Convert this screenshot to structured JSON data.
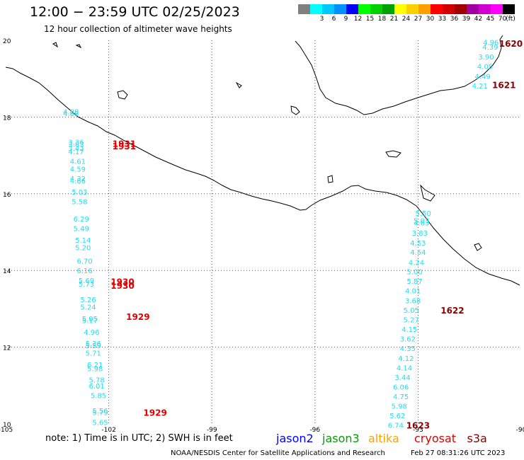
{
  "header": {
    "title": "12:00 − 23:59 UTC 02/25/2023",
    "subtitle": "12 hour collection of altimeter wave heights"
  },
  "legend": {
    "unit": "(ft)",
    "bins": [
      {
        "color": "#808080",
        "label": ""
      },
      {
        "color": "#00ffff",
        "label": "3"
      },
      {
        "color": "#00c8ff",
        "label": "6"
      },
      {
        "color": "#0090ff",
        "label": "9"
      },
      {
        "color": "#0000ff",
        "label": "12"
      },
      {
        "color": "#00ff00",
        "label": "15"
      },
      {
        "color": "#00d000",
        "label": "18"
      },
      {
        "color": "#00a000",
        "label": "21"
      },
      {
        "color": "#ffff00",
        "label": "24"
      },
      {
        "color": "#ffd000",
        "label": "27"
      },
      {
        "color": "#ffa000",
        "label": "30"
      },
      {
        "color": "#ff0000",
        "label": "33"
      },
      {
        "color": "#d00000",
        "label": "36"
      },
      {
        "color": "#a00000",
        "label": "39"
      },
      {
        "color": "#a000a0",
        "label": "42"
      },
      {
        "color": "#d000d0",
        "label": "45"
      },
      {
        "color": "#ff00ff",
        "label": "70"
      },
      {
        "color": "#000000",
        "label": ""
      }
    ]
  },
  "axes": {
    "lon_labels": [
      "-105",
      "-102",
      "-99",
      "-96",
      "-93",
      "-90"
    ],
    "lat_labels": [
      "20",
      "18",
      "16",
      "14",
      "12",
      "10"
    ],
    "lon_range": [
      -105,
      -90
    ],
    "lat_range": [
      10,
      20
    ]
  },
  "tracks": [
    {
      "satellite": "cryosat",
      "color": "#22ddee",
      "label_color": "#e00000",
      "points": [
        {
          "lon": -103.1,
          "lat": 18.15,
          "v": "4.88"
        },
        {
          "lon": -103.1,
          "lat": 18.1,
          "v": "4.88"
        },
        {
          "lon": -102.95,
          "lat": 17.35,
          "v": "3.36"
        },
        {
          "lon": -102.95,
          "lat": 17.3,
          "v": "3.83"
        },
        {
          "lon": -102.95,
          "lat": 17.2,
          "v": "3.43"
        },
        {
          "lon": -102.95,
          "lat": 17.1,
          "v": "4.17"
        },
        {
          "lon": -102.9,
          "lat": 16.85,
          "v": "4.61"
        },
        {
          "lon": -102.9,
          "lat": 16.65,
          "v": "4.59"
        },
        {
          "lon": -102.9,
          "lat": 16.4,
          "v": "4.32"
        },
        {
          "lon": -102.9,
          "lat": 16.35,
          "v": "4.86"
        },
        {
          "lon": -102.85,
          "lat": 16.05,
          "v": "5.03"
        },
        {
          "lon": -102.85,
          "lat": 15.8,
          "v": "5.58"
        },
        {
          "lon": -102.8,
          "lat": 15.35,
          "v": "6.29"
        },
        {
          "lon": -102.8,
          "lat": 15.1,
          "v": "5.49"
        },
        {
          "lon": -102.75,
          "lat": 14.8,
          "v": "5.14"
        },
        {
          "lon": -102.75,
          "lat": 14.6,
          "v": "5.20"
        },
        {
          "lon": -102.7,
          "lat": 14.25,
          "v": "6.70"
        },
        {
          "lon": -102.7,
          "lat": 14.0,
          "v": "6.16"
        },
        {
          "lon": -102.65,
          "lat": 13.75,
          "v": "5.69"
        },
        {
          "lon": -102.65,
          "lat": 13.65,
          "v": "5.73"
        },
        {
          "lon": -102.6,
          "lat": 13.25,
          "v": "5.26"
        },
        {
          "lon": -102.6,
          "lat": 13.05,
          "v": "5.24"
        },
        {
          "lon": -102.55,
          "lat": 12.75,
          "v": "5.05"
        },
        {
          "lon": -102.55,
          "lat": 12.7,
          "v": "5.17"
        },
        {
          "lon": -102.5,
          "lat": 12.4,
          "v": "4.96"
        },
        {
          "lon": -102.45,
          "lat": 12.1,
          "v": "5.36"
        },
        {
          "lon": -102.45,
          "lat": 12.05,
          "v": "5.59"
        },
        {
          "lon": -102.45,
          "lat": 11.85,
          "v": "5.71"
        },
        {
          "lon": -102.4,
          "lat": 11.55,
          "v": "6.21"
        },
        {
          "lon": -102.4,
          "lat": 11.45,
          "v": "5.98"
        },
        {
          "lon": -102.35,
          "lat": 11.15,
          "v": "5.78"
        },
        {
          "lon": -102.35,
          "lat": 11.0,
          "v": "6.01"
        },
        {
          "lon": -102.3,
          "lat": 10.75,
          "v": "5.85"
        },
        {
          "lon": -102.25,
          "lat": 10.35,
          "v": "5.56"
        },
        {
          "lon": -102.25,
          "lat": 10.3,
          "v": "5.79"
        },
        {
          "lon": -102.25,
          "lat": 10.05,
          "v": "5.65"
        }
      ],
      "time_labels": [
        {
          "lon": -101.55,
          "lat": 17.32,
          "text": "1931"
        },
        {
          "lon": -101.55,
          "lat": 17.25,
          "text": "1931"
        },
        {
          "lon": -101.6,
          "lat": 13.72,
          "text": "1930"
        },
        {
          "lon": -101.6,
          "lat": 13.62,
          "text": "1930"
        },
        {
          "lon": -101.15,
          "lat": 12.8,
          "text": "1929"
        },
        {
          "lon": -100.65,
          "lat": 10.3,
          "text": "1929"
        }
      ]
    },
    {
      "satellite": "s3a",
      "color": "#22ddee",
      "label_color": "#8b0000",
      "points": [
        {
          "lon": -90.88,
          "lat": 19.95,
          "v": "4.96"
        },
        {
          "lon": -90.9,
          "lat": 19.83,
          "v": "4.39"
        },
        {
          "lon": -91.02,
          "lat": 19.58,
          "v": "3.90"
        },
        {
          "lon": -91.05,
          "lat": 19.33,
          "v": "4.05"
        },
        {
          "lon": -91.12,
          "lat": 19.07,
          "v": "4.49"
        },
        {
          "lon": -91.2,
          "lat": 18.82,
          "v": "4.21"
        },
        {
          "lon": -92.85,
          "lat": 15.5,
          "v": "5.50"
        },
        {
          "lon": -92.9,
          "lat": 15.25,
          "v": "4.63"
        },
        {
          "lon": -92.9,
          "lat": 15.3,
          "v": "5.03"
        },
        {
          "lon": -92.95,
          "lat": 14.98,
          "v": "3.83"
        },
        {
          "lon": -93.0,
          "lat": 14.72,
          "v": "4.53"
        },
        {
          "lon": -93.0,
          "lat": 14.48,
          "v": "4.54"
        },
        {
          "lon": -93.05,
          "lat": 14.22,
          "v": "4.24"
        },
        {
          "lon": -93.1,
          "lat": 13.98,
          "v": "5.00"
        },
        {
          "lon": -93.1,
          "lat": 13.73,
          "v": "5.87"
        },
        {
          "lon": -93.15,
          "lat": 13.48,
          "v": "4.01"
        },
        {
          "lon": -93.15,
          "lat": 13.22,
          "v": "3.68"
        },
        {
          "lon": -93.2,
          "lat": 12.97,
          "v": "5.05"
        },
        {
          "lon": -93.2,
          "lat": 12.72,
          "v": "5.27"
        },
        {
          "lon": -93.25,
          "lat": 12.47,
          "v": "4.15"
        },
        {
          "lon": -93.3,
          "lat": 12.22,
          "v": "3.62"
        },
        {
          "lon": -93.3,
          "lat": 11.97,
          "v": "4.35"
        },
        {
          "lon": -93.35,
          "lat": 11.72,
          "v": "4.12"
        },
        {
          "lon": -93.4,
          "lat": 11.47,
          "v": "4.14"
        },
        {
          "lon": -93.45,
          "lat": 11.22,
          "v": "3.44"
        },
        {
          "lon": -93.5,
          "lat": 10.97,
          "v": "6.06"
        },
        {
          "lon": -93.5,
          "lat": 10.72,
          "v": "4.75"
        },
        {
          "lon": -93.55,
          "lat": 10.47,
          "v": "5.98"
        },
        {
          "lon": -93.6,
          "lat": 10.22,
          "v": "5.62"
        },
        {
          "lon": -93.65,
          "lat": 9.97,
          "v": "6.74"
        }
      ],
      "time_labels": [
        {
          "lon": -90.3,
          "lat": 19.93,
          "text": "1620"
        },
        {
          "lon": -90.5,
          "lat": 18.85,
          "text": "1621"
        },
        {
          "lon": -92.0,
          "lat": 12.97,
          "text": "1622"
        },
        {
          "lon": -93.0,
          "lat": 9.97,
          "text": "1623"
        }
      ]
    }
  ],
  "footer": {
    "note": "note:  1) Time is in UTC;  2) SWH is in feet",
    "satellites": [
      {
        "name": "jason2",
        "color": "#0000ff"
      },
      {
        "name": "jason3",
        "color": "#00a000"
      },
      {
        "name": "altika",
        "color": "#ffa000"
      },
      {
        "name": "cryosat",
        "color": "#e00000"
      },
      {
        "name": "s3a",
        "color": "#8b0000"
      }
    ],
    "credit": "NOAA/NESDIS Center for Satellite Applications and Research",
    "stamp": "Feb 27 08:31:26 UTC 2023"
  }
}
